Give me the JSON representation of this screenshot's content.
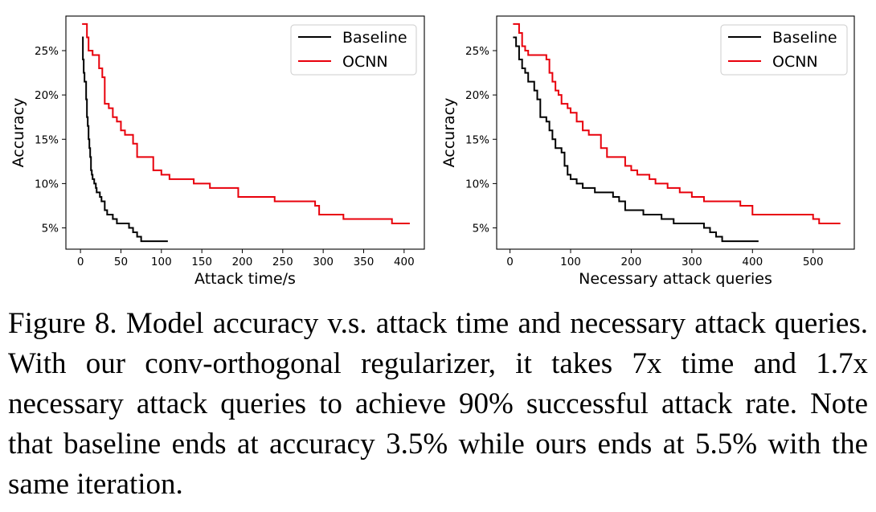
{
  "chart_data": [
    {
      "type": "line",
      "xlabel": "Attack time/s",
      "ylabel": "Accuracy",
      "xlim": [
        -18,
        425
      ],
      "ylim": [
        2.6,
        28.9
      ],
      "xticks": [
        0,
        50,
        100,
        150,
        200,
        250,
        300,
        350,
        400
      ],
      "yticks": [
        5,
        10,
        15,
        20,
        25
      ],
      "ytick_labels": [
        "5%",
        "10%",
        "15%",
        "20%",
        "25%"
      ],
      "legend_position": "top-right",
      "grid": false,
      "series": [
        {
          "name": "Baseline",
          "color": "#000000",
          "x": [
            2,
            3,
            4,
            5,
            6,
            7,
            8,
            9,
            10,
            11,
            12,
            13,
            14,
            15,
            16,
            17,
            18,
            19,
            20,
            22,
            24,
            26,
            28,
            30,
            33,
            36,
            40,
            45,
            50,
            55,
            60,
            65,
            70,
            75,
            80,
            90,
            100,
            108
          ],
          "y": [
            26.5,
            24.0,
            22.5,
            21.5,
            21.5,
            19.5,
            17.5,
            16.5,
            15.0,
            14.0,
            13.0,
            11.5,
            11.0,
            10.5,
            10.5,
            10.0,
            10.0,
            9.5,
            9.0,
            9.0,
            8.5,
            8.0,
            8.0,
            7.0,
            6.5,
            6.5,
            6.0,
            5.5,
            5.5,
            5.5,
            5.0,
            4.5,
            4.0,
            3.5,
            3.5,
            3.5,
            3.5,
            3.5
          ]
        },
        {
          "name": "OCNN",
          "color": "#e8000b",
          "x": [
            2,
            6,
            8,
            10,
            15,
            20,
            23,
            27,
            30,
            35,
            40,
            45,
            50,
            55,
            60,
            65,
            70,
            75,
            80,
            85,
            90,
            95,
            100,
            110,
            120,
            140,
            150,
            160,
            170,
            180,
            195,
            200,
            210,
            220,
            240,
            260,
            280,
            290,
            295,
            300,
            310,
            320,
            325,
            340,
            360,
            380,
            385,
            390,
            407
          ],
          "y": [
            28.0,
            28.0,
            26.5,
            25.0,
            24.5,
            24.5,
            23.0,
            22.0,
            19.0,
            18.5,
            17.5,
            17.0,
            16.0,
            15.5,
            15.5,
            14.5,
            13.0,
            13.0,
            13.0,
            13.0,
            11.5,
            11.5,
            11.0,
            10.5,
            10.5,
            10.0,
            10.0,
            9.5,
            9.5,
            9.5,
            8.5,
            8.5,
            8.5,
            8.5,
            8.0,
            8.0,
            8.0,
            7.5,
            6.5,
            6.5,
            6.5,
            6.5,
            6.0,
            6.0,
            6.0,
            6.0,
            5.5,
            5.5,
            5.5
          ]
        }
      ]
    },
    {
      "type": "line",
      "xlabel": "Necessary attack queries",
      "ylabel": "Accuracy",
      "xlim": [
        -22,
        568
      ],
      "ylim": [
        2.6,
        28.9
      ],
      "xticks": [
        0,
        100,
        200,
        300,
        400,
        500
      ],
      "yticks": [
        5,
        10,
        15,
        20,
        25
      ],
      "ytick_labels": [
        "5%",
        "10%",
        "15%",
        "20%",
        "25%"
      ],
      "legend_position": "top-right",
      "grid": false,
      "series": [
        {
          "name": "Baseline",
          "color": "#000000",
          "x": [
            5,
            10,
            15,
            20,
            25,
            30,
            35,
            40,
            45,
            50,
            55,
            60,
            65,
            70,
            75,
            80,
            85,
            90,
            95,
            100,
            105,
            110,
            115,
            120,
            130,
            140,
            150,
            160,
            170,
            180,
            190,
            200,
            210,
            220,
            230,
            250,
            270,
            290,
            300,
            310,
            320,
            330,
            340,
            350,
            380,
            410
          ],
          "y": [
            26.5,
            25.5,
            24.0,
            23.0,
            22.5,
            21.5,
            21.5,
            20.5,
            19.5,
            17.5,
            17.5,
            17.0,
            16.0,
            15.0,
            14.0,
            14.0,
            13.5,
            12.0,
            11.0,
            10.5,
            10.5,
            10.0,
            10.0,
            9.5,
            9.5,
            9.0,
            9.0,
            9.0,
            8.5,
            8.0,
            7.0,
            7.0,
            7.0,
            6.5,
            6.5,
            6.0,
            5.5,
            5.5,
            5.5,
            5.5,
            5.0,
            4.5,
            4.0,
            3.5,
            3.5,
            3.5
          ]
        },
        {
          "name": "OCNN",
          "color": "#e8000b",
          "x": [
            5,
            10,
            15,
            20,
            25,
            30,
            40,
            50,
            60,
            65,
            70,
            75,
            80,
            85,
            90,
            95,
            100,
            105,
            110,
            120,
            130,
            140,
            150,
            160,
            170,
            180,
            190,
            200,
            210,
            220,
            230,
            240,
            250,
            260,
            270,
            280,
            300,
            320,
            340,
            360,
            380,
            400,
            500,
            510,
            545
          ],
          "y": [
            28.0,
            28.0,
            27.0,
            25.5,
            25.0,
            24.5,
            24.5,
            24.5,
            24.0,
            22.5,
            21.5,
            20.5,
            20.0,
            19.0,
            19.0,
            18.5,
            18.0,
            18.0,
            17.0,
            16.0,
            15.5,
            15.5,
            14.0,
            13.0,
            13.0,
            13.0,
            12.0,
            11.5,
            11.0,
            11.0,
            10.5,
            10.0,
            10.0,
            9.5,
            9.5,
            9.0,
            8.5,
            8.0,
            8.0,
            8.0,
            7.5,
            6.5,
            6.0,
            5.5,
            5.5
          ]
        }
      ]
    }
  ],
  "caption": "Figure 8. Model accuracy v.s. attack time and necessary attack queries. With our conv-orthogonal regularizer, it takes 7x time and 1.7x necessary attack queries to achieve 90% successful attack rate. Note that baseline ends at accuracy 3.5% while ours ends at 5.5% with the same iteration."
}
